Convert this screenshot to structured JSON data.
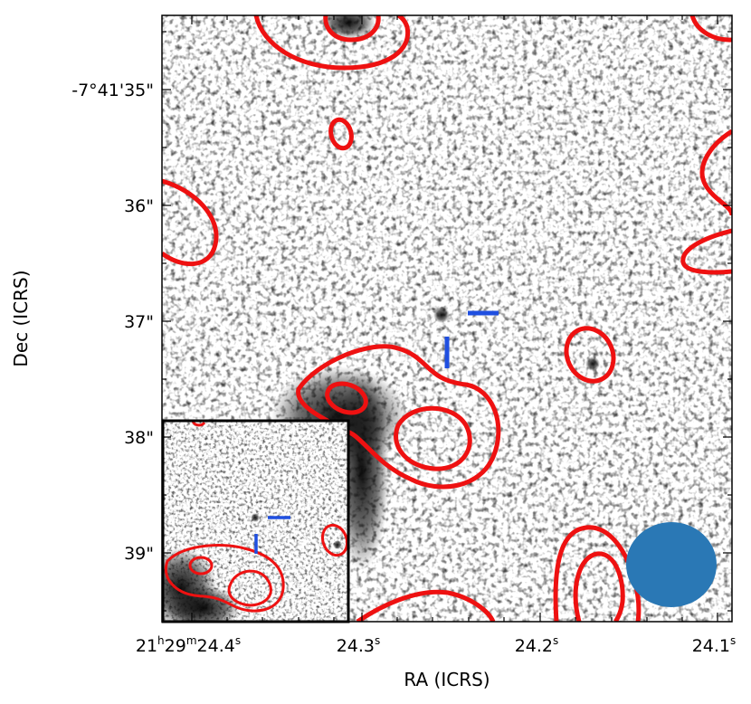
{
  "figure": {
    "xlabel": "RA (ICRS)",
    "ylabel": "Dec (ICRS)",
    "ra_tick_labels": [
      {
        "h": "21",
        "m": "29",
        "s": "24.4",
        "hm": true
      },
      {
        "s": "24.3"
      },
      {
        "s": "24.2"
      },
      {
        "s": "24.1"
      }
    ],
    "dec_tick_labels": [
      "-7°41'35\"",
      "36\"",
      "37\"",
      "38\"",
      "39\""
    ],
    "image": "grayscale astronomical cutout with red radio contours",
    "colors": {
      "contour": "#ee1111",
      "marker": "#1f4fe0",
      "beam": "#2a78b5",
      "frame": "#000000"
    },
    "inset": "smaller-scale view of the central field with same contours and markers",
    "beam_ellipse": "filled blue ellipse in lower-right corner"
  }
}
